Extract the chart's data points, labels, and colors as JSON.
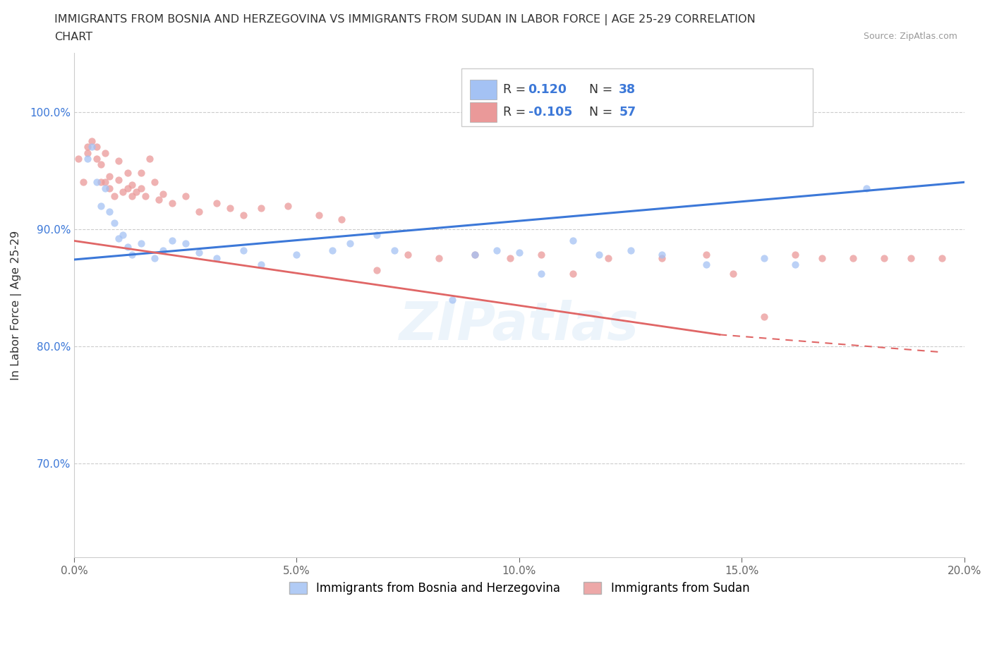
{
  "title_line1": "IMMIGRANTS FROM BOSNIA AND HERZEGOVINA VS IMMIGRANTS FROM SUDAN IN LABOR FORCE | AGE 25-29 CORRELATION",
  "title_line2": "CHART",
  "source": "Source: ZipAtlas.com",
  "ylabel": "In Labor Force | Age 25-29",
  "xlim": [
    0.0,
    0.2
  ],
  "ylim": [
    0.62,
    1.05
  ],
  "yticks": [
    0.7,
    0.8,
    0.9,
    1.0
  ],
  "ytick_labels": [
    "70.0%",
    "80.0%",
    "90.0%",
    "100.0%"
  ],
  "xticks": [
    0.0,
    0.05,
    0.1,
    0.15,
    0.2
  ],
  "xtick_labels": [
    "0.0%",
    "5.0%",
    "10.0%",
    "15.0%",
    "20.0%"
  ],
  "color_blue": "#a4c2f4",
  "color_pink": "#ea9999",
  "line_color_blue": "#3c78d8",
  "line_color_pink": "#e06666",
  "bosnia_x": [
    0.003,
    0.004,
    0.005,
    0.006,
    0.007,
    0.008,
    0.009,
    0.01,
    0.011,
    0.012,
    0.013,
    0.015,
    0.018,
    0.02,
    0.022,
    0.025,
    0.028,
    0.032,
    0.038,
    0.042,
    0.05,
    0.058,
    0.062,
    0.068,
    0.072,
    0.085,
    0.09,
    0.095,
    0.1,
    0.105,
    0.112,
    0.118,
    0.125,
    0.132,
    0.142,
    0.155,
    0.162,
    0.178
  ],
  "bosnia_y": [
    0.96,
    0.97,
    0.94,
    0.92,
    0.935,
    0.915,
    0.905,
    0.892,
    0.895,
    0.885,
    0.878,
    0.888,
    0.875,
    0.882,
    0.89,
    0.888,
    0.88,
    0.875,
    0.882,
    0.87,
    0.878,
    0.882,
    0.888,
    0.895,
    0.882,
    0.84,
    0.878,
    0.882,
    0.88,
    0.862,
    0.89,
    0.878,
    0.882,
    0.878,
    0.87,
    0.875,
    0.87,
    0.935
  ],
  "sudan_x": [
    0.001,
    0.002,
    0.003,
    0.003,
    0.004,
    0.005,
    0.005,
    0.006,
    0.006,
    0.007,
    0.007,
    0.008,
    0.008,
    0.009,
    0.01,
    0.01,
    0.011,
    0.012,
    0.012,
    0.013,
    0.013,
    0.014,
    0.015,
    0.015,
    0.016,
    0.017,
    0.018,
    0.019,
    0.02,
    0.022,
    0.025,
    0.028,
    0.032,
    0.035,
    0.038,
    0.042,
    0.048,
    0.055,
    0.06,
    0.068,
    0.075,
    0.082,
    0.09,
    0.098,
    0.105,
    0.112,
    0.12,
    0.132,
    0.142,
    0.148,
    0.155,
    0.162,
    0.168,
    0.175,
    0.182,
    0.188,
    0.195
  ],
  "sudan_y": [
    0.96,
    0.94,
    0.97,
    0.965,
    0.975,
    0.97,
    0.96,
    0.955,
    0.94,
    0.94,
    0.965,
    0.945,
    0.935,
    0.928,
    0.942,
    0.958,
    0.932,
    0.935,
    0.948,
    0.928,
    0.938,
    0.932,
    0.948,
    0.935,
    0.928,
    0.96,
    0.94,
    0.925,
    0.93,
    0.922,
    0.928,
    0.915,
    0.922,
    0.918,
    0.912,
    0.918,
    0.92,
    0.912,
    0.908,
    0.865,
    0.878,
    0.875,
    0.878,
    0.875,
    0.878,
    0.862,
    0.875,
    0.875,
    0.878,
    0.862,
    0.825,
    0.878,
    0.875,
    0.875,
    0.875,
    0.875,
    0.875
  ]
}
